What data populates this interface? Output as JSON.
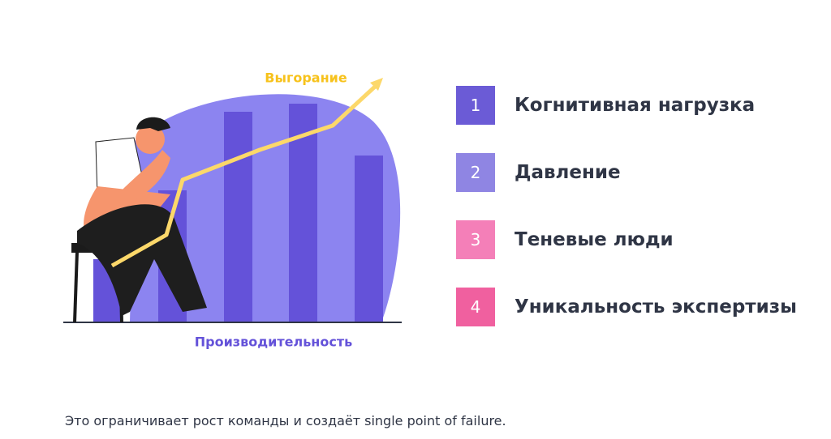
{
  "illustration": {
    "line_label": "Выгорание",
    "axis_label": "Производительность"
  },
  "list": [
    {
      "number": "1",
      "label": "Когнитивная нагрузка"
    },
    {
      "number": "2",
      "label": "Давление"
    },
    {
      "number": "3",
      "label": "Теневые люди"
    },
    {
      "number": "4",
      "label": "Уникальность экспертизы"
    }
  ],
  "footer": "Это ограничивает рост команды и создаёт single point of failure."
}
